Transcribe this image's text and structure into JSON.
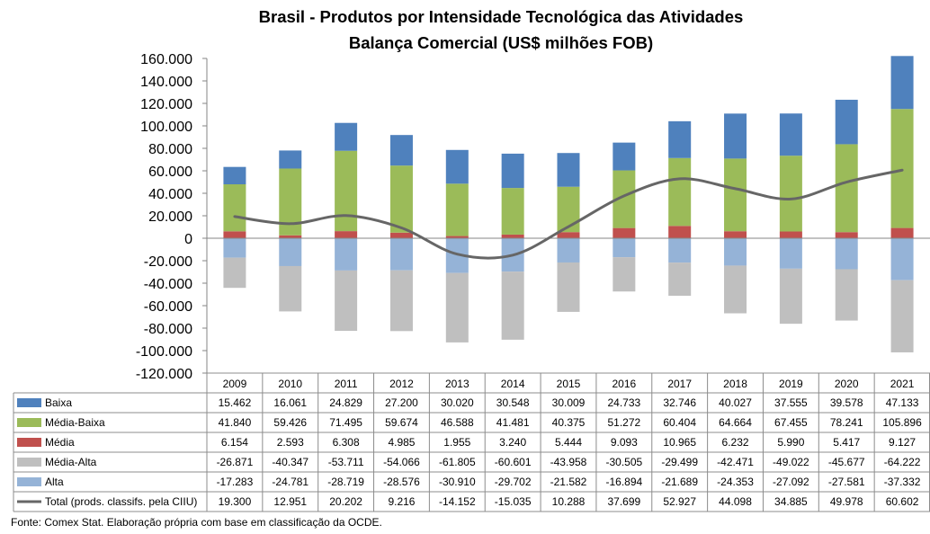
{
  "chart_data": {
    "type": "bar",
    "stacked": true,
    "title": "Brasil - Produtos por Intensidade Tecnológica das Atividades",
    "subtitle": "Balança Comercial (US$ milhões FOB)",
    "ylim": [
      -120000,
      160000
    ],
    "yticks": [
      160000,
      140000,
      120000,
      100000,
      80000,
      60000,
      40000,
      20000,
      0,
      -20000,
      -40000,
      -60000,
      -80000,
      -100000,
      -120000
    ],
    "ytick_labels": [
      "160.000",
      "140.000",
      "120.000",
      "100.000",
      "80.000",
      "60.000",
      "40.000",
      "20.000",
      "0",
      "-20.000",
      "-40.000",
      "-60.000",
      "-80.000",
      "-100.000",
      "-120.000"
    ],
    "categories": [
      "2009",
      "2010",
      "2011",
      "2012",
      "2013",
      "2014",
      "2015",
      "2016",
      "2017",
      "2018",
      "2019",
      "2020",
      "2021"
    ],
    "series": [
      {
        "name": "Baixa",
        "kind": "bar",
        "color": "#4f81bd",
        "values": [
          15462,
          16061,
          24829,
          27200,
          30020,
          30548,
          30009,
          24733,
          32746,
          40027,
          37555,
          39578,
          47133
        ],
        "labels": [
          "15.462",
          "16.061",
          "24.829",
          "27.200",
          "30.020",
          "30.548",
          "30.009",
          "24.733",
          "32.746",
          "40.027",
          "37.555",
          "39.578",
          "47.133"
        ]
      },
      {
        "name": "Média-Baixa",
        "kind": "bar",
        "color": "#9bbb59",
        "values": [
          41840,
          59426,
          71495,
          59674,
          46588,
          41481,
          40375,
          51272,
          60404,
          64664,
          67455,
          78241,
          105896
        ],
        "labels": [
          "41.840",
          "59.426",
          "71.495",
          "59.674",
          "46.588",
          "41.481",
          "40.375",
          "51.272",
          "60.404",
          "64.664",
          "67.455",
          "78.241",
          "105.896"
        ]
      },
      {
        "name": "Média",
        "kind": "bar",
        "color": "#c0504d",
        "values": [
          6154,
          2593,
          6308,
          4985,
          1955,
          3240,
          5444,
          9093,
          10965,
          6232,
          5990,
          5417,
          9127
        ],
        "labels": [
          "6.154",
          "2.593",
          "6.308",
          "4.985",
          "1.955",
          "3.240",
          "5.444",
          "9.093",
          "10.965",
          "6.232",
          "5.990",
          "5.417",
          "9.127"
        ]
      },
      {
        "name": "Média-Alta",
        "kind": "bar",
        "color": "#bfbfbf",
        "values": [
          -26871,
          -40347,
          -53711,
          -54066,
          -61805,
          -60601,
          -43958,
          -30505,
          -29499,
          -42471,
          -49022,
          -45677,
          -64222
        ],
        "labels": [
          "-26.871",
          "-40.347",
          "-53.711",
          "-54.066",
          "-61.805",
          "-60.601",
          "-43.958",
          "-30.505",
          "-29.499",
          "-42.471",
          "-49.022",
          "-45.677",
          "-64.222"
        ]
      },
      {
        "name": "Alta",
        "kind": "bar",
        "color": "#95b3d7",
        "values": [
          -17283,
          -24781,
          -28719,
          -28576,
          -30910,
          -29702,
          -21582,
          -16894,
          -21689,
          -24353,
          -27092,
          -27581,
          -37332
        ],
        "labels": [
          "-17.283",
          "-24.781",
          "-28.719",
          "-28.576",
          "-30.910",
          "-29.702",
          "-21.582",
          "-16.894",
          "-21.689",
          "-24.353",
          "-27.092",
          "-27.581",
          "-37.332"
        ]
      },
      {
        "name": "Total (prods. classifs. pela CIIU)",
        "kind": "line",
        "color": "#666666",
        "values": [
          19300,
          12951,
          20202,
          9216,
          -14152,
          -15035,
          10288,
          37699,
          52927,
          44098,
          34885,
          49978,
          60602
        ],
        "labels": [
          "19.300",
          "12.951",
          "20.202",
          "9.216",
          "-14.152",
          "-15.035",
          "10.288",
          "37.699",
          "52.927",
          "44.098",
          "34.885",
          "49.978",
          "60.602"
        ]
      }
    ],
    "positive_stack_order": [
      "Média",
      "Média-Baixa",
      "Baixa"
    ],
    "negative_stack_order": [
      "Alta",
      "Média-Alta"
    ],
    "data_table": true,
    "grid": false,
    "legend": "data-table",
    "source": "Fonte: Comex Stat. Elaboração própria com base em classificação da OCDE."
  }
}
